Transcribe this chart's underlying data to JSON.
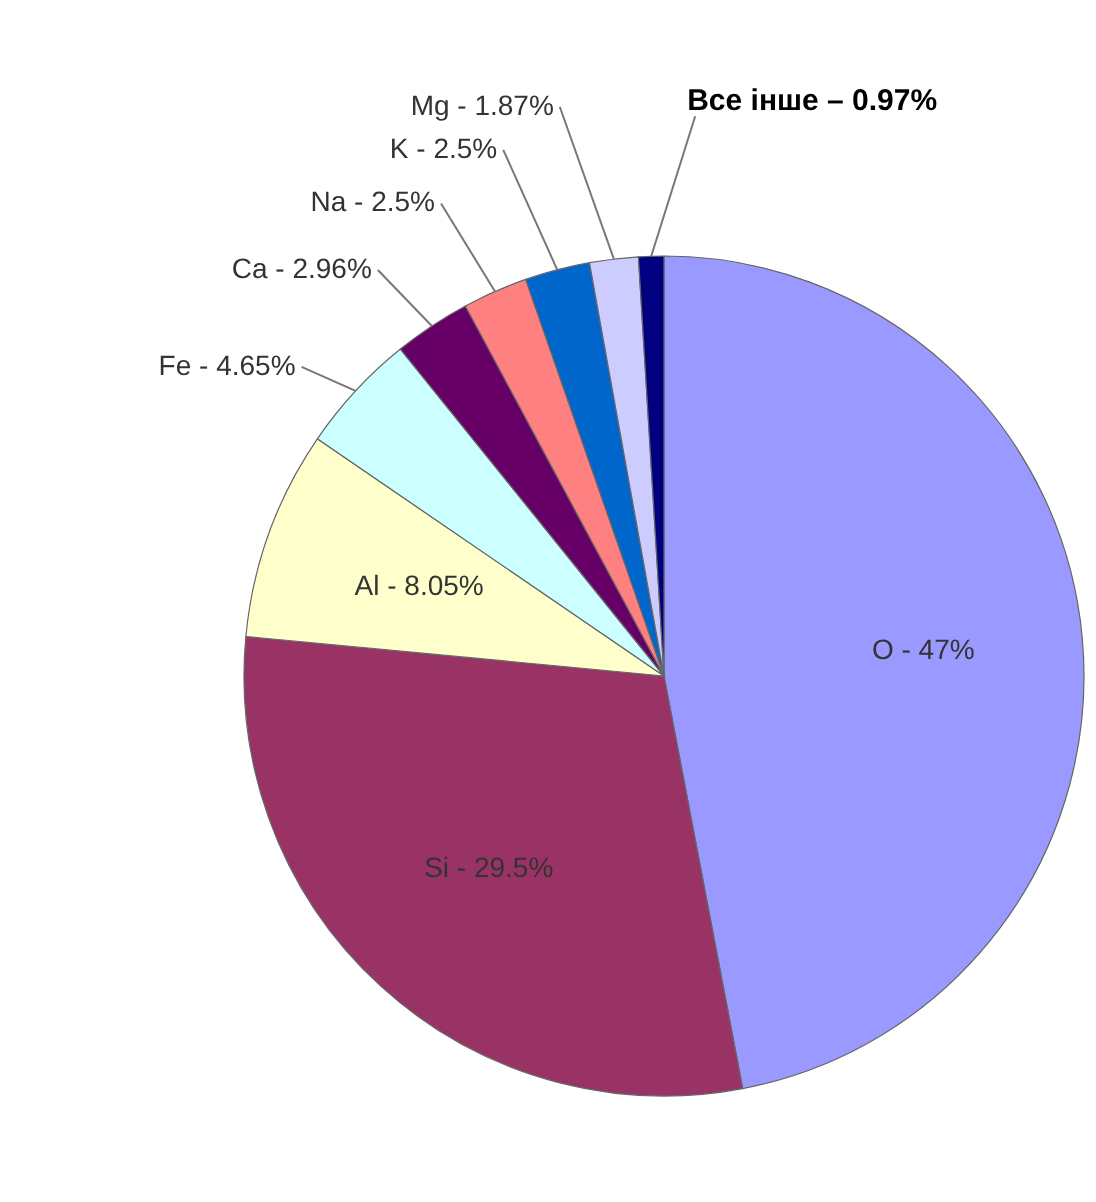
{
  "chart_data": {
    "type": "pie",
    "categories": [
      "O - 47%",
      "Si - 29.5%",
      "Al - 8.05%",
      "Fe - 4.65%",
      "Ca - 2.96%",
      "Na - 2.5%",
      "K - 2.5%",
      "Mg - 1.87%",
      "Все інше – 0.97%"
    ],
    "values": [
      47,
      29.5,
      8.05,
      4.65,
      2.96,
      2.5,
      2.5,
      1.87,
      0.97
    ],
    "colors": [
      "#9999ff",
      "#993366",
      "#ffffcc",
      "#ccffff",
      "#660066",
      "#ff8080",
      "#0066cc",
      "#ccccff",
      "#000080"
    ]
  }
}
